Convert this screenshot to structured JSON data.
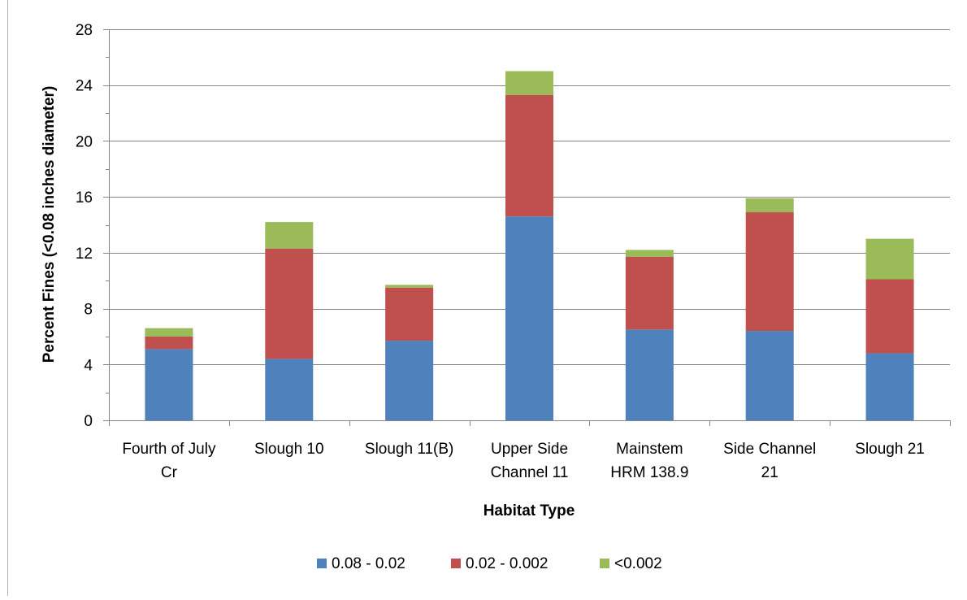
{
  "chart_data": {
    "type": "bar",
    "stacked": true,
    "xlabel": "Habitat Type",
    "ylabel": "Percent Fines (<0.08 inches diameter)",
    "ylim": [
      0,
      28
    ],
    "yticks": [
      0,
      4,
      8,
      12,
      16,
      20,
      24,
      28
    ],
    "grid": true,
    "legend_position": "bottom",
    "categories": [
      [
        "Fourth of July",
        "Cr"
      ],
      [
        "Slough 10"
      ],
      [
        "Slough 11(B)"
      ],
      [
        "Upper Side",
        "Channel 11"
      ],
      [
        "Mainstem",
        "HRM 138.9"
      ],
      [
        "Side Channel",
        "21"
      ],
      [
        "Slough 21"
      ]
    ],
    "series": [
      {
        "name": "0.08 - 0.02",
        "color": "#4f81bd",
        "values": [
          5.1,
          4.4,
          5.7,
          14.6,
          6.5,
          6.4,
          4.8
        ]
      },
      {
        "name": "0.02 - 0.002",
        "color": "#c0504d",
        "values": [
          0.9,
          7.9,
          3.8,
          8.7,
          5.2,
          8.5,
          5.3
        ]
      },
      {
        "name": "<0.002",
        "color": "#9bbb59",
        "values": [
          0.6,
          1.9,
          0.2,
          1.7,
          0.5,
          1.0,
          2.9
        ]
      }
    ]
  }
}
